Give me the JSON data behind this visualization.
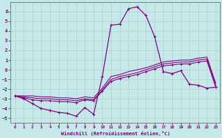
{
  "xlabel": "Windchill (Refroidissement éolien,°C)",
  "ylabel": "",
  "background_color": "#c5e8e8",
  "line_color": "#800080",
  "xlim": [
    -0.5,
    23.5
  ],
  "ylim": [
    -5.5,
    7.0
  ],
  "xticks": [
    0,
    1,
    2,
    3,
    4,
    5,
    6,
    7,
    8,
    9,
    10,
    11,
    12,
    13,
    14,
    15,
    16,
    17,
    18,
    19,
    20,
    21,
    22,
    23
  ],
  "yticks": [
    -5,
    -4,
    -3,
    -2,
    -1,
    0,
    1,
    2,
    3,
    4,
    5,
    6
  ],
  "grid_color": "#b0d0d0",
  "series": {
    "line1_x": [
      0,
      1,
      2,
      3,
      4,
      5,
      6,
      7,
      8,
      9,
      10,
      11,
      12,
      13,
      14,
      15,
      16,
      17,
      18,
      19,
      20,
      21,
      22,
      23
    ],
    "line1_y": [
      -2.7,
      -3.0,
      -3.5,
      -4.0,
      -4.2,
      -4.4,
      -4.5,
      -4.8,
      -3.9,
      -4.6,
      -0.7,
      4.6,
      4.7,
      6.3,
      6.5,
      5.6,
      3.4,
      -0.2,
      -0.4,
      -0.1,
      -1.5,
      -1.6,
      -1.9,
      -1.8
    ],
    "line2_x": [
      0,
      1,
      2,
      3,
      4,
      5,
      6,
      7,
      8,
      9,
      10,
      11,
      12,
      13,
      14,
      15,
      16,
      17,
      18,
      19,
      20,
      21,
      22,
      23
    ],
    "line2_y": [
      -2.7,
      -2.9,
      -3.1,
      -3.2,
      -3.2,
      -3.3,
      -3.3,
      -3.4,
      -3.1,
      -3.2,
      -2.2,
      -1.2,
      -0.9,
      -0.7,
      -0.5,
      -0.2,
      0.1,
      0.4,
      0.5,
      0.6,
      0.6,
      0.8,
      0.9,
      -1.8
    ],
    "line3_x": [
      0,
      1,
      2,
      3,
      4,
      5,
      6,
      7,
      8,
      9,
      10,
      11,
      12,
      13,
      14,
      15,
      16,
      17,
      18,
      19,
      20,
      21,
      22,
      23
    ],
    "line3_y": [
      -2.7,
      -2.8,
      -2.9,
      -3.0,
      -3.0,
      -3.1,
      -3.1,
      -3.2,
      -3.0,
      -3.1,
      -2.1,
      -1.0,
      -0.7,
      -0.5,
      -0.3,
      0.0,
      0.3,
      0.6,
      0.7,
      0.8,
      0.8,
      1.0,
      1.1,
      -1.6
    ],
    "line4_x": [
      0,
      1,
      2,
      3,
      4,
      5,
      6,
      7,
      8,
      9,
      10,
      11,
      12,
      13,
      14,
      15,
      16,
      17,
      18,
      19,
      20,
      21,
      22,
      23
    ],
    "line4_y": [
      -2.7,
      -2.7,
      -2.7,
      -2.8,
      -2.8,
      -2.9,
      -2.9,
      -3.0,
      -2.8,
      -2.9,
      -1.9,
      -0.7,
      -0.5,
      -0.2,
      0.0,
      0.2,
      0.5,
      0.8,
      0.9,
      1.0,
      1.0,
      1.2,
      1.3,
      -1.4
    ]
  }
}
